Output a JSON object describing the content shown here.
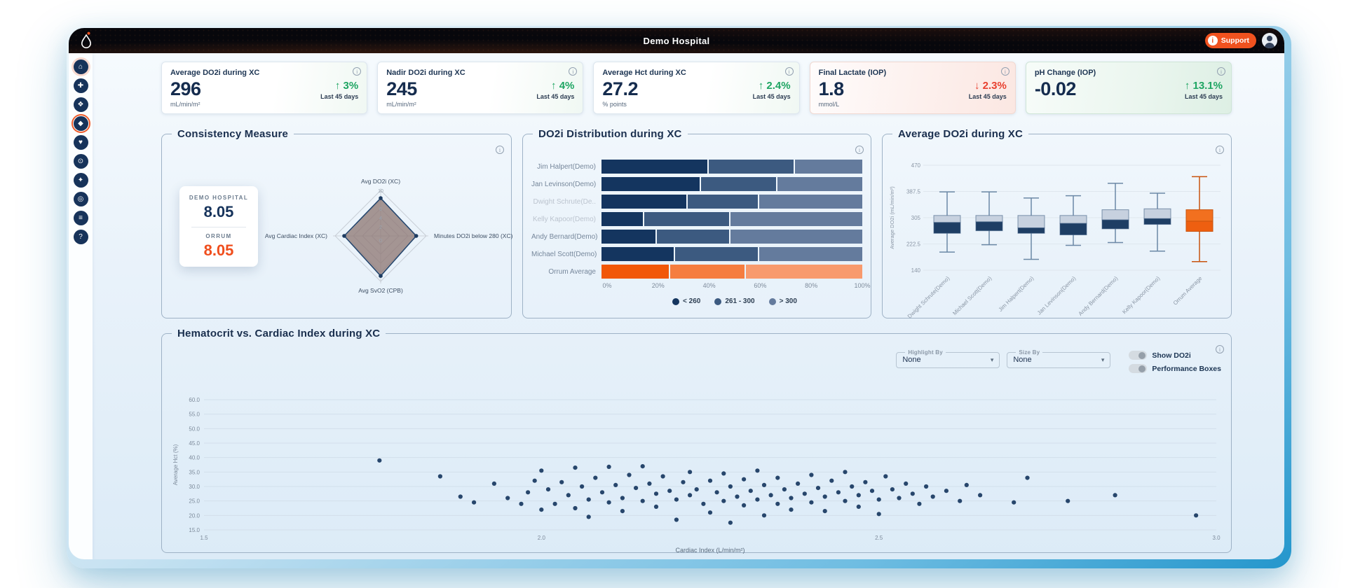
{
  "theme": {
    "accent_orange": "#f0521f",
    "navy": "#16335b",
    "positive": "#1ea562",
    "negative": "#e8402f"
  },
  "topbar": {
    "title": "Demo Hospital",
    "support_label": "Support"
  },
  "sidebar": {
    "items": [
      {
        "name": "home-icon",
        "glyph": "⌂",
        "ring": "soft"
      },
      {
        "name": "clinic-icon",
        "glyph": "✚",
        "ring": "none"
      },
      {
        "name": "care-icon",
        "glyph": "❖",
        "ring": "none"
      },
      {
        "name": "perfusion-icon",
        "glyph": "◆",
        "ring": "solid"
      },
      {
        "name": "heart-icon",
        "glyph": "♥",
        "ring": "none"
      },
      {
        "name": "hub-icon",
        "glyph": "⊙",
        "ring": "none"
      },
      {
        "name": "patient-icon",
        "glyph": "✦",
        "ring": "none"
      },
      {
        "name": "audit-icon",
        "glyph": "◎",
        "ring": "none"
      },
      {
        "name": "report-icon",
        "glyph": "≡",
        "ring": "none"
      },
      {
        "name": "help-icon",
        "glyph": "?",
        "ring": "none"
      }
    ]
  },
  "kpi_cards": [
    {
      "title": "Average DO2i during XC",
      "value": "296",
      "unit": "mL/min/m²",
      "change": "3%",
      "direction": "up",
      "period": "Last 45 days",
      "tint": "none"
    },
    {
      "title": "Nadir DO2i during XC",
      "value": "245",
      "unit": "mL/min/m²",
      "change": "4%",
      "direction": "up",
      "period": "Last 45 days",
      "tint": "none"
    },
    {
      "title": "Average Hct during XC",
      "value": "27.2",
      "unit": "% points",
      "change": "2.4%",
      "direction": "up",
      "period": "Last 45 days",
      "tint": "none"
    },
    {
      "title": "Final Lactate (IOP)",
      "value": "1.8",
      "unit": "mmol/L",
      "change": "2.3%",
      "direction": "down",
      "period": "Last 45 days",
      "tint": "red"
    },
    {
      "title": "pH Change (IOP)",
      "value": "-0.02",
      "unit": "",
      "change": "13.1%",
      "direction": "up",
      "period": "Last 45 days",
      "tint": "green"
    }
  ],
  "scatter_controls": {
    "highlight_by": {
      "label": "Highlight By",
      "value": "None"
    },
    "size_by": {
      "label": "Size By",
      "value": "None"
    },
    "toggles": [
      {
        "label": "Show DO2i",
        "on": false
      },
      {
        "label": "Performance Boxes",
        "on": false
      }
    ]
  },
  "chart_data": [
    {
      "type": "radar",
      "title": "Consistency Measure",
      "categories": [
        "Avg DO2i (XC)",
        "Minutes DO2i below 280 (XC)",
        "Avg SvO2 (CPB)",
        "Avg Cardiac Index (XC)"
      ],
      "series": [
        {
          "name": "Demo Hospital",
          "values": [
            8.3,
            7.8,
            8.8,
            8.0
          ]
        }
      ],
      "scale": {
        "min": 0,
        "max": 10,
        "rings": [
          2,
          4,
          6,
          8,
          10
        ],
        "ticks": [
          0,
          2,
          4,
          6,
          10
        ]
      },
      "fill_color": "#8f7a76",
      "stroke_color": "#23466e",
      "score_card": {
        "hospital_label": "DEMO HOSPITAL",
        "hospital_score": "8.05",
        "benchmark_label": "ORRUM",
        "benchmark_score": "8.05"
      }
    },
    {
      "type": "bar",
      "orientation": "horizontal",
      "stacked": true,
      "title": "DO2i Distribution during XC",
      "categories": [
        "Jim Halpert(Demo)",
        "Jan Levinson(Demo)",
        "Dwight Schrute(De..",
        "Kelly Kapoor(Demo)",
        "Andy Bernard(Demo)",
        "Michael Scott(Demo)",
        "Orrum Average"
      ],
      "muted_categories": [
        2,
        3
      ],
      "series": [
        {
          "name": "< 260",
          "color": "#14355f",
          "values": [
            41,
            38,
            33,
            16,
            21,
            28,
            26
          ]
        },
        {
          "name": "261 - 300",
          "color": "#3c5a80",
          "values": [
            33,
            29,
            27,
            33,
            28,
            32,
            29
          ]
        },
        {
          "name": "> 300",
          "color": "#647b9d",
          "values": [
            26,
            33,
            40,
            51,
            51,
            40,
            45
          ]
        }
      ],
      "highlight_row": {
        "index": 6,
        "colors": [
          "#f15808",
          "#f57d3f",
          "#f89a6d"
        ]
      },
      "xticks": [
        "0%",
        "20%",
        "40%",
        "60%",
        "80%",
        "100%"
      ],
      "xlim": [
        0,
        100
      ]
    },
    {
      "type": "box",
      "title": "Average DO2i during XC",
      "ylabel": "Average DO2i (mL/min/m²)",
      "ylim": [
        140,
        470
      ],
      "yticks": [
        140,
        222.5,
        305,
        387.5,
        470
      ],
      "categories": [
        "Dwight Schrute(Demo)",
        "Michael Scott(Demo)",
        "Jim Halpert(Demo)",
        "Jan Levinson(Demo)",
        "Andy Bernard(Demo)",
        "Kelly Kapoor(Demo)",
        "Orrum Average"
      ],
      "boxes": [
        {
          "low": 197,
          "q1": 256,
          "median": 290,
          "q3": 312,
          "high": 386
        },
        {
          "low": 220,
          "q1": 264,
          "median": 292,
          "q3": 312,
          "high": 386
        },
        {
          "low": 174,
          "q1": 256,
          "median": 273,
          "q3": 312,
          "high": 367
        },
        {
          "low": 218,
          "q1": 251,
          "median": 287,
          "q3": 312,
          "high": 374
        },
        {
          "low": 227,
          "q1": 270,
          "median": 298,
          "q3": 330,
          "high": 413
        },
        {
          "low": 200,
          "q1": 284,
          "median": 302,
          "q3": 333,
          "high": 382
        },
        {
          "low": 167,
          "q1": 262,
          "median": 294,
          "q3": 330,
          "high": 434
        }
      ],
      "highlight_index": 6,
      "colors": {
        "box_light": "#c7d1df",
        "box_dark": "#1e3e64",
        "whisker": "#6b88a6",
        "highlight": "#f2701f",
        "highlight_dark": "#ee5f10"
      }
    },
    {
      "type": "scatter",
      "title": "Hematocrit vs. Cardiac Index during XC",
      "xlabel": "Cardiac Index (L/min/m²)",
      "ylabel": "Average Hct (%)",
      "xlim": [
        1.5,
        3.0
      ],
      "ylim": [
        15,
        60
      ],
      "xticks": [
        1.5,
        2.0,
        2.5,
        3.0
      ],
      "yticks": [
        15,
        20,
        25,
        30,
        35,
        40,
        45,
        50,
        55,
        60
      ],
      "point_color": "#17375f",
      "points": [
        [
          1.76,
          39.0
        ],
        [
          1.85,
          33.5
        ],
        [
          1.88,
          26.5
        ],
        [
          1.9,
          24.5
        ],
        [
          1.93,
          31.0
        ],
        [
          1.95,
          26.0
        ],
        [
          1.97,
          24.0
        ],
        [
          1.98,
          28.0
        ],
        [
          1.99,
          32.0
        ],
        [
          2.0,
          35.5
        ],
        [
          2.0,
          22.0
        ],
        [
          2.01,
          29.0
        ],
        [
          2.02,
          24.0
        ],
        [
          2.03,
          31.5
        ],
        [
          2.04,
          27.0
        ],
        [
          2.05,
          36.5
        ],
        [
          2.05,
          22.5
        ],
        [
          2.06,
          30.0
        ],
        [
          2.07,
          25.5
        ],
        [
          2.07,
          19.5
        ],
        [
          2.08,
          33.0
        ],
        [
          2.09,
          28.0
        ],
        [
          2.1,
          36.8
        ],
        [
          2.1,
          24.5
        ],
        [
          2.11,
          30.5
        ],
        [
          2.12,
          26.0
        ],
        [
          2.12,
          21.5
        ],
        [
          2.13,
          34.0
        ],
        [
          2.14,
          29.5
        ],
        [
          2.15,
          25.0
        ],
        [
          2.15,
          37.0
        ],
        [
          2.16,
          31.0
        ],
        [
          2.17,
          27.5
        ],
        [
          2.17,
          23.0
        ],
        [
          2.18,
          33.5
        ],
        [
          2.19,
          28.5
        ],
        [
          2.2,
          25.5
        ],
        [
          2.2,
          18.5
        ],
        [
          2.21,
          31.5
        ],
        [
          2.22,
          27.0
        ],
        [
          2.22,
          35.0
        ],
        [
          2.23,
          29.0
        ],
        [
          2.24,
          24.0
        ],
        [
          2.25,
          32.0
        ],
        [
          2.25,
          21.0
        ],
        [
          2.26,
          28.0
        ],
        [
          2.27,
          25.0
        ],
        [
          2.27,
          34.5
        ],
        [
          2.28,
          30.0
        ],
        [
          2.28,
          17.5
        ],
        [
          2.29,
          26.5
        ],
        [
          2.3,
          23.5
        ],
        [
          2.3,
          32.5
        ],
        [
          2.31,
          28.5
        ],
        [
          2.32,
          25.5
        ],
        [
          2.32,
          35.5
        ],
        [
          2.33,
          30.5
        ],
        [
          2.33,
          20.0
        ],
        [
          2.34,
          27.0
        ],
        [
          2.35,
          24.0
        ],
        [
          2.35,
          33.0
        ],
        [
          2.36,
          29.0
        ],
        [
          2.37,
          26.0
        ],
        [
          2.37,
          22.0
        ],
        [
          2.38,
          31.0
        ],
        [
          2.39,
          27.5
        ],
        [
          2.4,
          24.5
        ],
        [
          2.4,
          34.0
        ],
        [
          2.41,
          29.5
        ],
        [
          2.42,
          26.5
        ],
        [
          2.42,
          21.5
        ],
        [
          2.43,
          32.0
        ],
        [
          2.44,
          28.0
        ],
        [
          2.45,
          25.0
        ],
        [
          2.45,
          35.0
        ],
        [
          2.46,
          30.0
        ],
        [
          2.47,
          27.0
        ],
        [
          2.47,
          23.0
        ],
        [
          2.48,
          31.5
        ],
        [
          2.49,
          28.5
        ],
        [
          2.5,
          25.5
        ],
        [
          2.5,
          20.5
        ],
        [
          2.51,
          33.5
        ],
        [
          2.52,
          29.0
        ],
        [
          2.53,
          26.0
        ],
        [
          2.54,
          31.0
        ],
        [
          2.55,
          27.5
        ],
        [
          2.56,
          24.0
        ],
        [
          2.57,
          30.0
        ],
        [
          2.58,
          26.5
        ],
        [
          2.6,
          28.5
        ],
        [
          2.62,
          25.0
        ],
        [
          2.63,
          30.5
        ],
        [
          2.65,
          27.0
        ],
        [
          2.7,
          24.5
        ],
        [
          2.72,
          33.0
        ],
        [
          2.78,
          25.0
        ],
        [
          2.85,
          27.0
        ],
        [
          2.97,
          20.0
        ]
      ]
    }
  ]
}
